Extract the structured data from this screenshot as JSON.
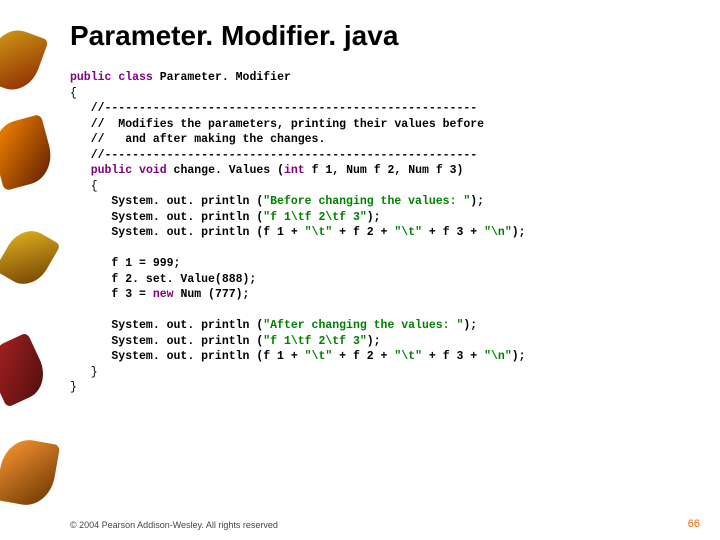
{
  "title": "Parameter. Modifier. java",
  "code": {
    "line01a": "public",
    "line01b": "class",
    "line01c": " Parameter. Modifier",
    "line02": "{",
    "line03": "   //------------------------------------------------------",
    "line04": "   //  Modifies the parameters, printing their values before",
    "line05": "   //   and after making the changes.",
    "line06": "   //------------------------------------------------------",
    "line07a": "public",
    "line07b": "void",
    "line07c": " change. Values (",
    "line07d": "int",
    "line07e": " f 1, Num f 2, Num f 3)",
    "line08": "   {",
    "line09a": "      System. out. println (",
    "line09b": "\"Before changing the values: \"",
    "line09c": ");",
    "line10a": "      System. out. println (",
    "line10b": "\"f 1\\tf 2\\tf 3\"",
    "line10c": ");",
    "line11a": "      System. out. println (f 1 + ",
    "line11b": "\"\\t\"",
    "line11c": " + f 2 + ",
    "line11d": "\"\\t\"",
    "line11e": " + f 3 + ",
    "line11f": "\"\\n\"",
    "line11g": ");",
    "line13": "      f 1 = 999;",
    "line14": "      f 2. set. Value(888);",
    "line15a": "      f 3 = ",
    "line15b": "new",
    "line15c": " Num (777);",
    "line17a": "      System. out. println (",
    "line17b": "\"After changing the values: \"",
    "line17c": ");",
    "line18a": "      System. out. println (",
    "line18b": "\"f 1\\tf 2\\tf 3\"",
    "line18c": ");",
    "line19a": "      System. out. println (f 1 + ",
    "line19b": "\"\\t\"",
    "line19c": " + f 2 + ",
    "line19d": "\"\\t\"",
    "line19e": " + f 3 + ",
    "line19f": "\"\\n\"",
    "line19g": ");",
    "line20": "   }",
    "line21": "}"
  },
  "footer": "© 2004 Pearson Addison-Wesley. All rights reserved",
  "pagenum": "66"
}
